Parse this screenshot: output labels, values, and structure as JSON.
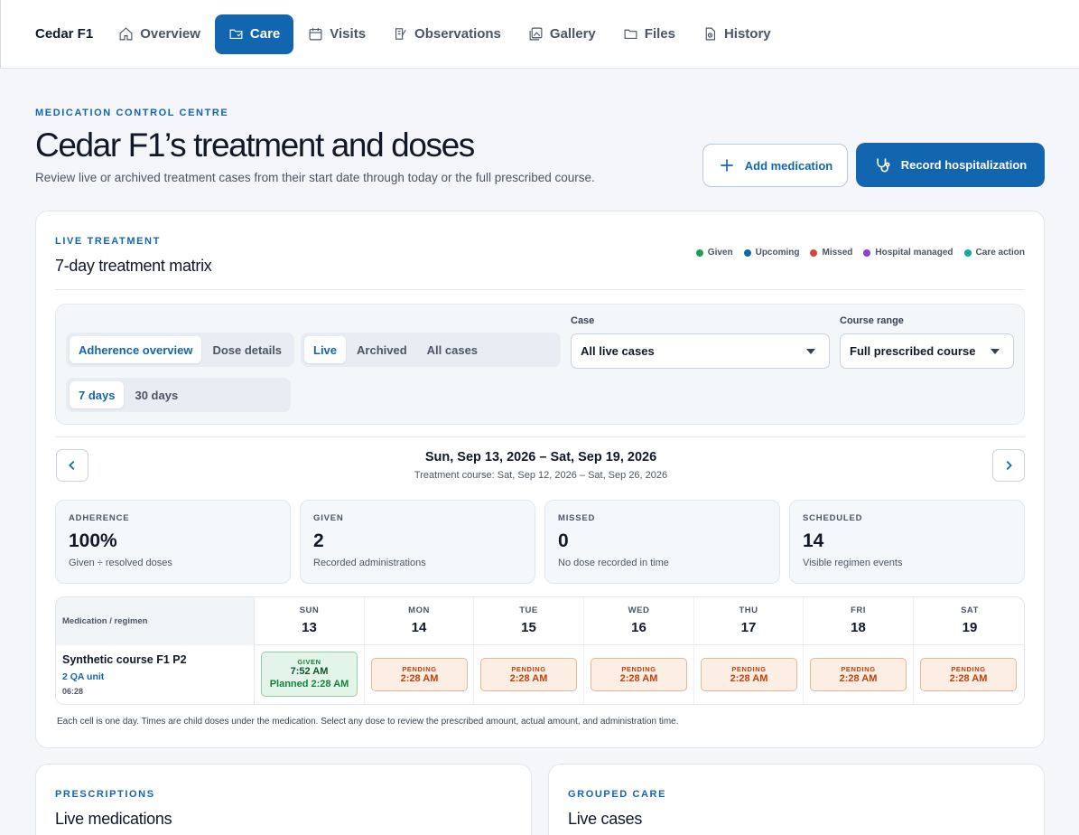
{
  "nav": {
    "brand": "Cedar F1",
    "tabs": [
      {
        "label": "Overview",
        "icon": "home-icon",
        "active": false
      },
      {
        "label": "Care",
        "icon": "care-icon",
        "active": true
      },
      {
        "label": "Visits",
        "icon": "calendar-icon",
        "active": false
      },
      {
        "label": "Observations",
        "icon": "notes-icon",
        "active": false
      },
      {
        "label": "Gallery",
        "icon": "gallery-icon",
        "active": false
      },
      {
        "label": "Files",
        "icon": "folder-icon",
        "active": false
      },
      {
        "label": "History",
        "icon": "history-icon",
        "active": false
      }
    ]
  },
  "header": {
    "eyebrow": "MEDICATION CONTROL CENTRE",
    "title": "Cedar F1’s treatment and doses",
    "subtitle": "Review live or archived treatment cases from their start date through today or the full prescribed course.",
    "add_medication": "Add medication",
    "record_hospitalization": "Record hospitalization"
  },
  "treatment": {
    "eyebrow": "LIVE TREATMENT",
    "title": "7-day treatment matrix",
    "legend": [
      {
        "label": "Given",
        "color": "#1f9d55"
      },
      {
        "label": "Upcoming",
        "color": "#1266b0"
      },
      {
        "label": "Missed",
        "color": "#d64541"
      },
      {
        "label": "Hospital managed",
        "color": "#8b3fd1"
      },
      {
        "label": "Care action",
        "color": "#14a89a"
      }
    ],
    "view_toggle": [
      "Adherence overview",
      "Dose details"
    ],
    "status_toggle": [
      "Live",
      "Archived",
      "All cases"
    ],
    "range_toggle": [
      "7 days",
      "30 days"
    ],
    "case_label": "Case",
    "case_value": "All live cases",
    "course_label": "Course range",
    "course_value": "Full prescribed course",
    "date_range": "Sun, Sep 13, 2026 – Sat, Sep 19, 2026",
    "course_range": "Treatment course: Sat, Sep 12, 2026 – Sat, Sep 26, 2026",
    "stats": [
      {
        "label": "ADHERENCE",
        "value": "100%",
        "desc": "Given ÷ resolved doses"
      },
      {
        "label": "GIVEN",
        "value": "2",
        "desc": "Recorded administrations"
      },
      {
        "label": "MISSED",
        "value": "0",
        "desc": "No dose recorded in time"
      },
      {
        "label": "SCHEDULED",
        "value": "14",
        "desc": "Visible regimen events"
      }
    ],
    "matrix": {
      "first_header": "Medication / regimen",
      "days": [
        {
          "dow": "SUN",
          "num": "13"
        },
        {
          "dow": "MON",
          "num": "14"
        },
        {
          "dow": "TUE",
          "num": "15"
        },
        {
          "dow": "WED",
          "num": "16"
        },
        {
          "dow": "THU",
          "num": "17"
        },
        {
          "dow": "FRI",
          "num": "18"
        },
        {
          "dow": "SAT",
          "num": "19"
        }
      ],
      "medication": {
        "name": "Synthetic course F1 P2",
        "unit": "2 QA unit",
        "time": "06:28"
      },
      "doses": [
        {
          "status": "GIVEN",
          "time": "7:52 AM",
          "planned": "Planned 2:28 AM"
        },
        {
          "status": "PENDING",
          "time": "2:28 AM"
        },
        {
          "status": "PENDING",
          "time": "2:28 AM"
        },
        {
          "status": "PENDING",
          "time": "2:28 AM"
        },
        {
          "status": "PENDING",
          "time": "2:28 AM"
        },
        {
          "status": "PENDING",
          "time": "2:28 AM"
        },
        {
          "status": "PENDING",
          "time": "2:28 AM"
        }
      ]
    },
    "note": "Each cell is one day. Times are child doses under the medication. Select any dose to review the prescribed amount, actual amount, and administration time."
  },
  "prescriptions": {
    "eyebrow": "PRESCRIPTIONS",
    "title": "Live medications"
  },
  "grouped_care": {
    "eyebrow": "GROUPED CARE",
    "title": "Live cases"
  }
}
